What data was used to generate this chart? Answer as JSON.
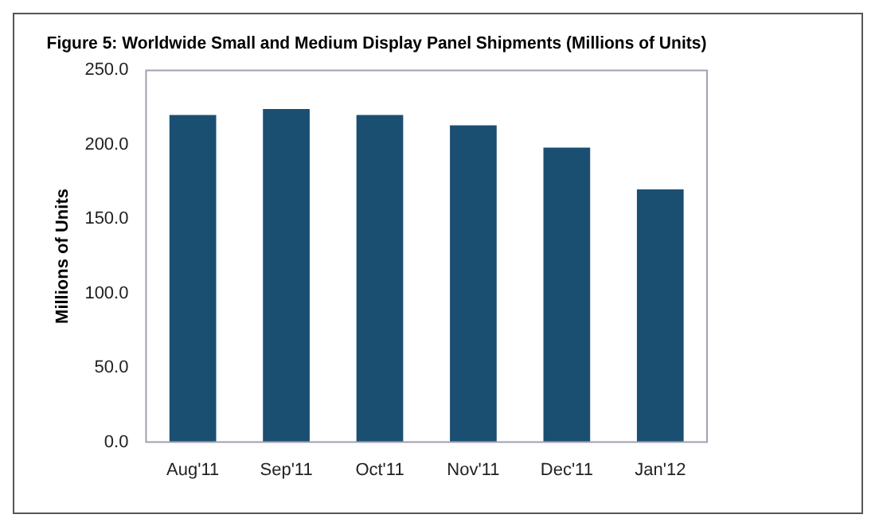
{
  "chart_data": {
    "type": "bar",
    "title": "Figure 5: Worldwide Small and Medium Display Panel Shipments (Millions of Units)",
    "ylabel": "Millions of Units",
    "categories": [
      "Aug'11",
      "Sep'11",
      "Oct'11",
      "Nov'11",
      "Dec'11",
      "Jan'12"
    ],
    "values": [
      220,
      224,
      220,
      213,
      198,
      170
    ],
    "color": "#1b4f72",
    "ylim": [
      0,
      250
    ],
    "yticks": [
      {
        "value": 0,
        "label": "0.0"
      },
      {
        "value": 50,
        "label": "50.0"
      },
      {
        "value": 100,
        "label": "100.0"
      },
      {
        "value": 150,
        "label": "150.0"
      },
      {
        "value": 200,
        "label": "200.0"
      },
      {
        "value": 250,
        "label": "250.0"
      }
    ],
    "grid": false,
    "legend": false
  }
}
